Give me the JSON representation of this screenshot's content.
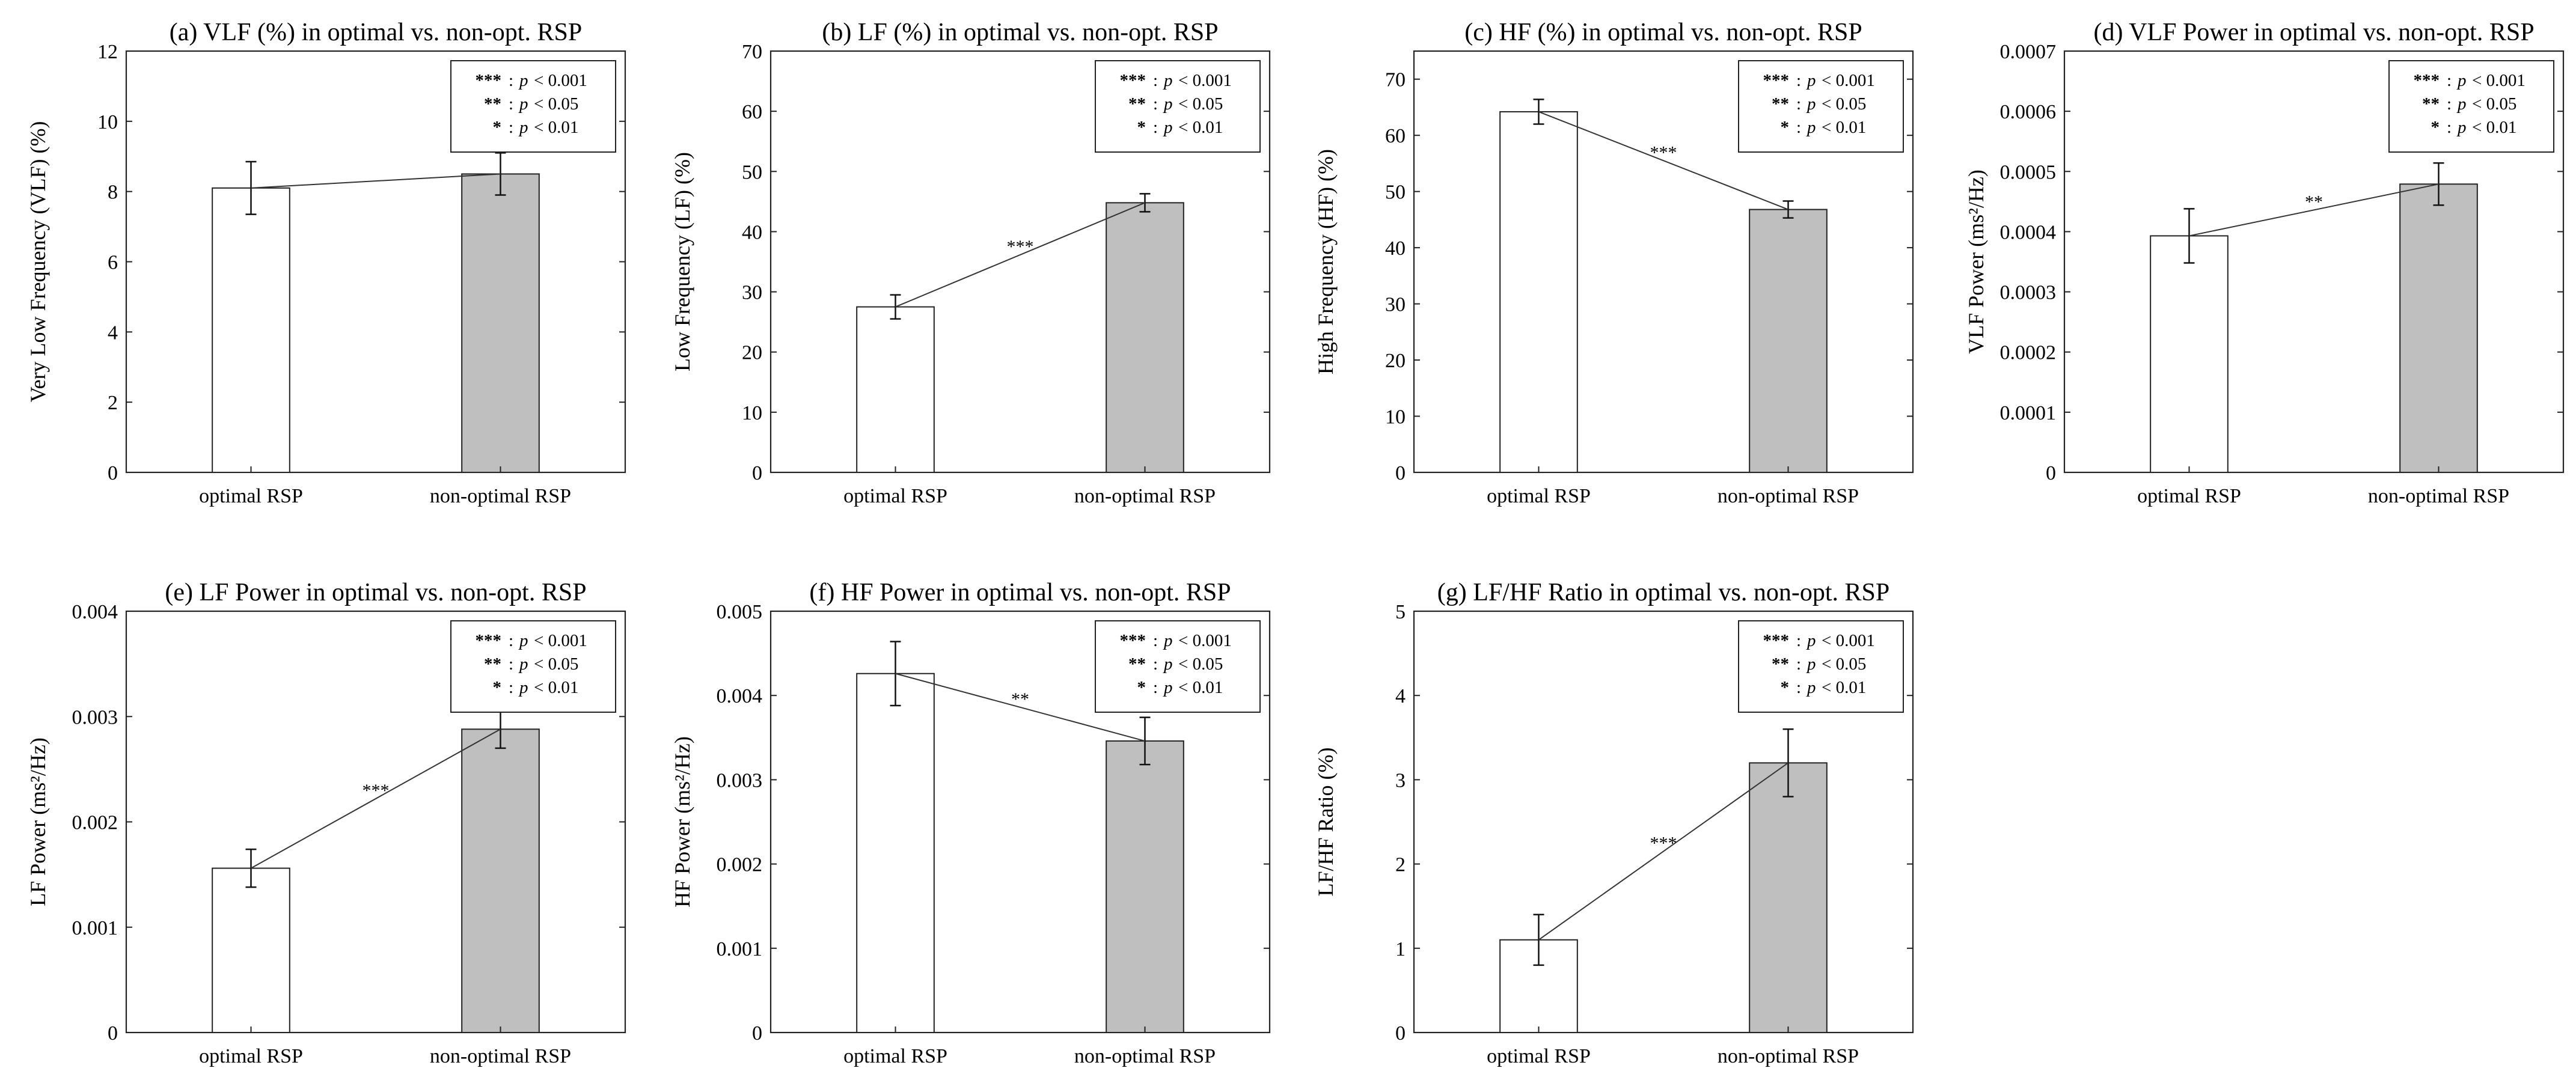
{
  "legend_lines": [
    {
      "stars": "***",
      "sep": ":",
      "p": "p",
      "rel": "< 0.001"
    },
    {
      "stars": "**",
      "sep": ":",
      "p": "p",
      "rel": "< 0.05"
    },
    {
      "stars": "*",
      "sep": ":",
      "p": "p",
      "rel": "< 0.01"
    }
  ],
  "colors": {
    "optimal": "#ffffff",
    "non_optimal": "#bfbfbf",
    "edge": "#222222"
  },
  "chart_data": [
    {
      "id": "a",
      "type": "bar",
      "title": "(a) VLF (%) in optimal vs. non-opt. RSP",
      "ylabel": "Very Low Frequency (VLF) (%)",
      "categories": [
        "optimal RSP",
        "non-optimal RSP"
      ],
      "values": [
        8.1,
        8.5
      ],
      "errors": [
        0.75,
        0.6
      ],
      "ylim": [
        0,
        12
      ],
      "yticks": [
        "0",
        "2",
        "4",
        "6",
        "8",
        "10",
        "12"
      ],
      "significance": ""
    },
    {
      "id": "b",
      "type": "bar",
      "title": "(b) LF (%) in optimal vs. non-opt. RSP",
      "ylabel": "Low Frequency (LF) (%)",
      "categories": [
        "optimal RSP",
        "non-optimal RSP"
      ],
      "values": [
        27.5,
        44.8
      ],
      "errors": [
        2.0,
        1.5
      ],
      "ylim": [
        0,
        70
      ],
      "yticks": [
        "0",
        "10",
        "20",
        "30",
        "40",
        "50",
        "60",
        "70"
      ],
      "significance": "***"
    },
    {
      "id": "c",
      "type": "bar",
      "title": "(c) HF (%) in optimal vs. non-opt. RSP",
      "ylabel": "High Frequency (HF) (%)",
      "categories": [
        "optimal RSP",
        "non-optimal RSP"
      ],
      "values": [
        64.2,
        46.8
      ],
      "errors": [
        2.2,
        1.5
      ],
      "ylim": [
        0,
        75
      ],
      "yticks": [
        "0",
        "10",
        "20",
        "30",
        "40",
        "50",
        "60",
        "70"
      ],
      "significance": "***"
    },
    {
      "id": "d",
      "type": "bar",
      "title": "(d) VLF Power in optimal vs. non-opt. RSP",
      "ylabel": "VLF Power (ms²/Hz)",
      "categories": [
        "optimal RSP",
        "non-optimal RSP"
      ],
      "values": [
        0.000393,
        0.000479
      ],
      "errors": [
        4.5e-05,
        3.5e-05
      ],
      "ylim": [
        0,
        0.0007
      ],
      "yticks": [
        "0",
        "0.0001",
        "0.0002",
        "0.0003",
        "0.0004",
        "0.0005",
        "0.0006",
        "0.0007"
      ],
      "significance": "**"
    },
    {
      "id": "e",
      "type": "bar",
      "title": "(e) LF Power in optimal vs. non-opt. RSP",
      "ylabel": "LF Power (ms²/Hz)",
      "categories": [
        "optimal RSP",
        "non-optimal RSP"
      ],
      "values": [
        0.00156,
        0.00288
      ],
      "errors": [
        0.00018,
        0.00018
      ],
      "ylim": [
        0,
        0.004
      ],
      "yticks": [
        "0",
        "0.001",
        "0.002",
        "0.003",
        "0.004"
      ],
      "significance": "***"
    },
    {
      "id": "f",
      "type": "bar",
      "title": "(f) HF Power in optimal vs. non-opt. RSP",
      "ylabel": "HF Power (ms²/Hz)",
      "categories": [
        "optimal RSP",
        "non-optimal RSP"
      ],
      "values": [
        0.00426,
        0.00346
      ],
      "errors": [
        0.00038,
        0.00028
      ],
      "ylim": [
        0,
        0.005
      ],
      "yticks": [
        "0",
        "0.001",
        "0.002",
        "0.003",
        "0.004",
        "0.005"
      ],
      "significance": "**"
    },
    {
      "id": "g",
      "type": "bar",
      "title": "(g) LF/HF Ratio in optimal vs. non-opt. RSP",
      "ylabel": "LF/HF Ratio (%)",
      "categories": [
        "optimal RSP",
        "non-optimal RSP"
      ],
      "values": [
        1.1,
        3.2
      ],
      "errors": [
        0.3,
        0.4
      ],
      "ylim": [
        0,
        5
      ],
      "yticks": [
        "0",
        "1",
        "2",
        "3",
        "4",
        "5"
      ],
      "significance": "***"
    }
  ]
}
